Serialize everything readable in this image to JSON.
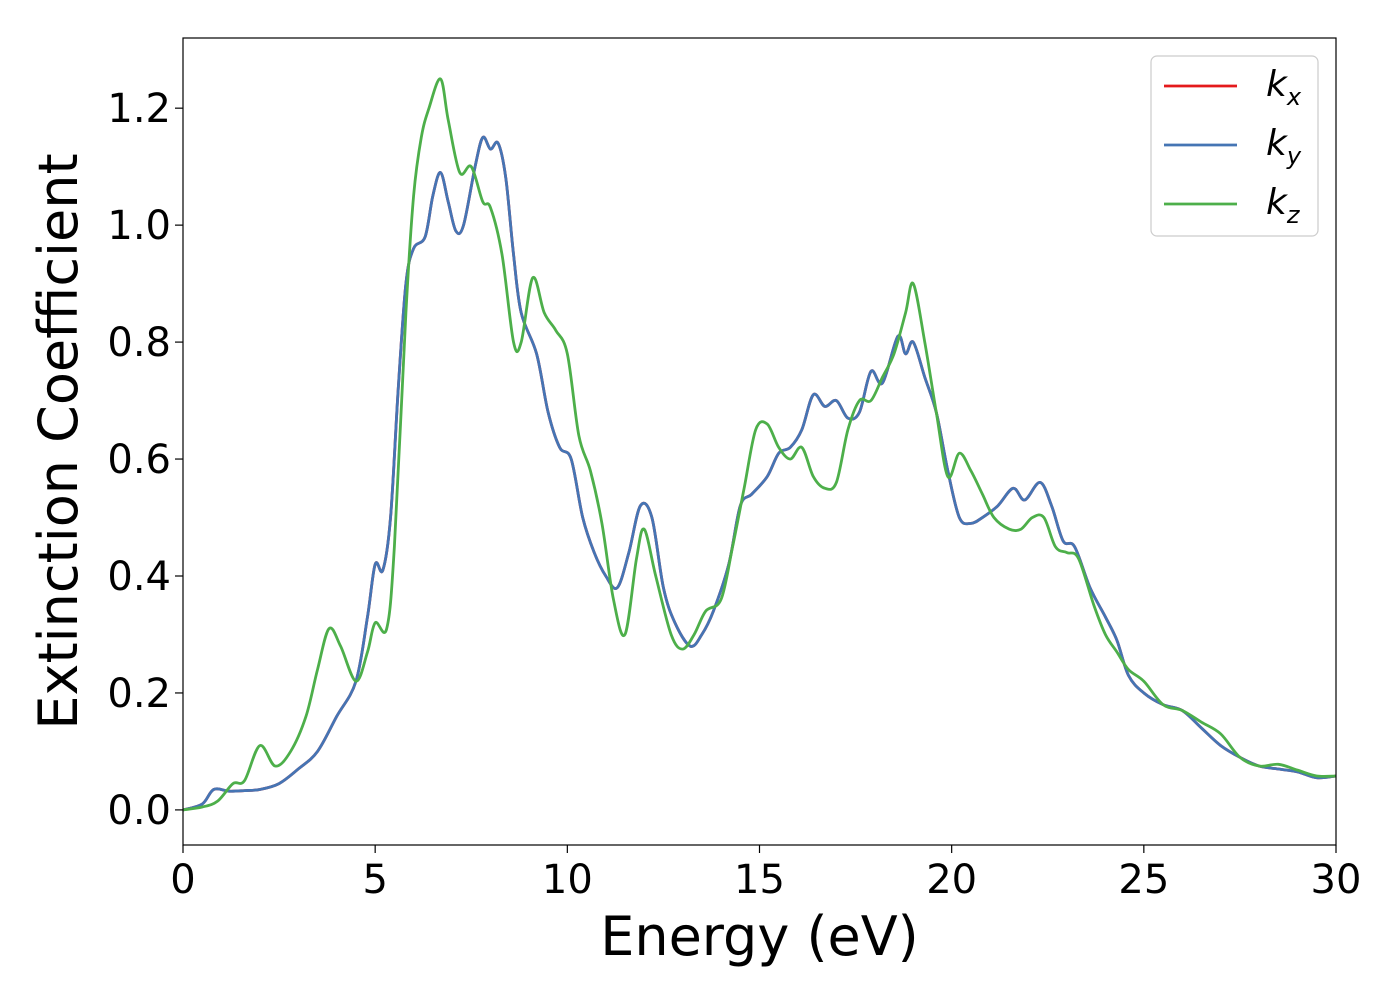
{
  "chart_data": {
    "type": "line",
    "xlabel": "Energy (eV)",
    "ylabel": "Extinction Coefficient",
    "xlim": [
      0,
      30
    ],
    "ylim": [
      -0.06,
      1.32
    ],
    "xticks": [
      0,
      5,
      10,
      15,
      20,
      25,
      30
    ],
    "xtick_labels": [
      "0",
      "5",
      "10",
      "15",
      "20",
      "25",
      "30"
    ],
    "yticks": [
      0.0,
      0.2,
      0.4,
      0.6,
      0.8,
      1.0,
      1.2
    ],
    "ytick_labels": [
      "0.0",
      "0.2",
      "0.4",
      "0.6",
      "0.8",
      "1.0",
      "1.2"
    ],
    "grid": false,
    "legend_position": "top-right",
    "series": [
      {
        "name": "k",
        "subscript": "x",
        "color": "#e41a1c",
        "points": [
          [
            0,
            0.0
          ],
          [
            0.5,
            0.01
          ],
          [
            0.8,
            0.035
          ],
          [
            1.2,
            0.032
          ],
          [
            1.6,
            0.033
          ],
          [
            2.0,
            0.035
          ],
          [
            2.5,
            0.045
          ],
          [
            3.0,
            0.07
          ],
          [
            3.5,
            0.1
          ],
          [
            4.0,
            0.16
          ],
          [
            4.5,
            0.22
          ],
          [
            4.8,
            0.33
          ],
          [
            5.0,
            0.42
          ],
          [
            5.2,
            0.41
          ],
          [
            5.4,
            0.5
          ],
          [
            5.6,
            0.72
          ],
          [
            5.8,
            0.9
          ],
          [
            6.0,
            0.96
          ],
          [
            6.3,
            0.98
          ],
          [
            6.5,
            1.05
          ],
          [
            6.7,
            1.09
          ],
          [
            6.9,
            1.04
          ],
          [
            7.1,
            0.99
          ],
          [
            7.3,
            1.0
          ],
          [
            7.6,
            1.1
          ],
          [
            7.8,
            1.15
          ],
          [
            8.0,
            1.13
          ],
          [
            8.2,
            1.14
          ],
          [
            8.4,
            1.08
          ],
          [
            8.6,
            0.95
          ],
          [
            8.8,
            0.85
          ],
          [
            9.2,
            0.78
          ],
          [
            9.5,
            0.68
          ],
          [
            9.8,
            0.62
          ],
          [
            10.1,
            0.6
          ],
          [
            10.4,
            0.5
          ],
          [
            10.7,
            0.44
          ],
          [
            11.0,
            0.4
          ],
          [
            11.3,
            0.38
          ],
          [
            11.6,
            0.44
          ],
          [
            11.9,
            0.52
          ],
          [
            12.2,
            0.5
          ],
          [
            12.5,
            0.38
          ],
          [
            12.8,
            0.32
          ],
          [
            13.2,
            0.28
          ],
          [
            13.5,
            0.3
          ],
          [
            13.8,
            0.34
          ],
          [
            14.2,
            0.42
          ],
          [
            14.5,
            0.52
          ],
          [
            14.8,
            0.54
          ],
          [
            15.2,
            0.57
          ],
          [
            15.5,
            0.61
          ],
          [
            15.8,
            0.62
          ],
          [
            16.1,
            0.65
          ],
          [
            16.4,
            0.71
          ],
          [
            16.7,
            0.69
          ],
          [
            17.0,
            0.7
          ],
          [
            17.3,
            0.67
          ],
          [
            17.6,
            0.68
          ],
          [
            17.9,
            0.75
          ],
          [
            18.2,
            0.73
          ],
          [
            18.6,
            0.81
          ],
          [
            18.8,
            0.78
          ],
          [
            19.0,
            0.8
          ],
          [
            19.3,
            0.74
          ],
          [
            19.6,
            0.68
          ],
          [
            19.9,
            0.58
          ],
          [
            20.2,
            0.5
          ],
          [
            20.5,
            0.49
          ],
          [
            20.8,
            0.5
          ],
          [
            21.2,
            0.52
          ],
          [
            21.6,
            0.55
          ],
          [
            21.9,
            0.53
          ],
          [
            22.3,
            0.56
          ],
          [
            22.6,
            0.52
          ],
          [
            22.9,
            0.46
          ],
          [
            23.2,
            0.45
          ],
          [
            23.6,
            0.38
          ],
          [
            24.0,
            0.33
          ],
          [
            24.3,
            0.29
          ],
          [
            24.6,
            0.23
          ],
          [
            25.0,
            0.2
          ],
          [
            25.5,
            0.18
          ],
          [
            26.0,
            0.17
          ],
          [
            26.5,
            0.14
          ],
          [
            27.0,
            0.11
          ],
          [
            27.5,
            0.09
          ],
          [
            28.0,
            0.075
          ],
          [
            28.5,
            0.07
          ],
          [
            29.0,
            0.065
          ],
          [
            29.5,
            0.055
          ],
          [
            30.0,
            0.058
          ]
        ]
      },
      {
        "name": "k",
        "subscript": "y",
        "color": "#4575b4",
        "points": [
          [
            0,
            0.0
          ],
          [
            0.5,
            0.01
          ],
          [
            0.8,
            0.035
          ],
          [
            1.2,
            0.032
          ],
          [
            1.6,
            0.033
          ],
          [
            2.0,
            0.035
          ],
          [
            2.5,
            0.045
          ],
          [
            3.0,
            0.07
          ],
          [
            3.5,
            0.1
          ],
          [
            4.0,
            0.16
          ],
          [
            4.5,
            0.22
          ],
          [
            4.8,
            0.33
          ],
          [
            5.0,
            0.42
          ],
          [
            5.2,
            0.41
          ],
          [
            5.4,
            0.5
          ],
          [
            5.6,
            0.72
          ],
          [
            5.8,
            0.9
          ],
          [
            6.0,
            0.96
          ],
          [
            6.3,
            0.98
          ],
          [
            6.5,
            1.05
          ],
          [
            6.7,
            1.09
          ],
          [
            6.9,
            1.04
          ],
          [
            7.1,
            0.99
          ],
          [
            7.3,
            1.0
          ],
          [
            7.6,
            1.1
          ],
          [
            7.8,
            1.15
          ],
          [
            8.0,
            1.13
          ],
          [
            8.2,
            1.14
          ],
          [
            8.4,
            1.08
          ],
          [
            8.6,
            0.95
          ],
          [
            8.8,
            0.85
          ],
          [
            9.2,
            0.78
          ],
          [
            9.5,
            0.68
          ],
          [
            9.8,
            0.62
          ],
          [
            10.1,
            0.6
          ],
          [
            10.4,
            0.5
          ],
          [
            10.7,
            0.44
          ],
          [
            11.0,
            0.4
          ],
          [
            11.3,
            0.38
          ],
          [
            11.6,
            0.44
          ],
          [
            11.9,
            0.52
          ],
          [
            12.2,
            0.5
          ],
          [
            12.5,
            0.38
          ],
          [
            12.8,
            0.32
          ],
          [
            13.2,
            0.28
          ],
          [
            13.5,
            0.3
          ],
          [
            13.8,
            0.34
          ],
          [
            14.2,
            0.42
          ],
          [
            14.5,
            0.52
          ],
          [
            14.8,
            0.54
          ],
          [
            15.2,
            0.57
          ],
          [
            15.5,
            0.61
          ],
          [
            15.8,
            0.62
          ],
          [
            16.1,
            0.65
          ],
          [
            16.4,
            0.71
          ],
          [
            16.7,
            0.69
          ],
          [
            17.0,
            0.7
          ],
          [
            17.3,
            0.67
          ],
          [
            17.6,
            0.68
          ],
          [
            17.9,
            0.75
          ],
          [
            18.2,
            0.73
          ],
          [
            18.6,
            0.81
          ],
          [
            18.8,
            0.78
          ],
          [
            19.0,
            0.8
          ],
          [
            19.3,
            0.74
          ],
          [
            19.6,
            0.68
          ],
          [
            19.9,
            0.58
          ],
          [
            20.2,
            0.5
          ],
          [
            20.5,
            0.49
          ],
          [
            20.8,
            0.5
          ],
          [
            21.2,
            0.52
          ],
          [
            21.6,
            0.55
          ],
          [
            21.9,
            0.53
          ],
          [
            22.3,
            0.56
          ],
          [
            22.6,
            0.52
          ],
          [
            22.9,
            0.46
          ],
          [
            23.2,
            0.45
          ],
          [
            23.6,
            0.38
          ],
          [
            24.0,
            0.33
          ],
          [
            24.3,
            0.29
          ],
          [
            24.6,
            0.23
          ],
          [
            25.0,
            0.2
          ],
          [
            25.5,
            0.18
          ],
          [
            26.0,
            0.17
          ],
          [
            26.5,
            0.14
          ],
          [
            27.0,
            0.11
          ],
          [
            27.5,
            0.09
          ],
          [
            28.0,
            0.075
          ],
          [
            28.5,
            0.07
          ],
          [
            29.0,
            0.065
          ],
          [
            29.5,
            0.055
          ],
          [
            30.0,
            0.058
          ]
        ]
      },
      {
        "name": "k",
        "subscript": "z",
        "color": "#4daf4a",
        "points": [
          [
            0,
            0.0
          ],
          [
            0.5,
            0.005
          ],
          [
            0.9,
            0.015
          ],
          [
            1.3,
            0.045
          ],
          [
            1.6,
            0.05
          ],
          [
            2.0,
            0.11
          ],
          [
            2.4,
            0.075
          ],
          [
            2.8,
            0.1
          ],
          [
            3.2,
            0.16
          ],
          [
            3.5,
            0.24
          ],
          [
            3.8,
            0.31
          ],
          [
            4.1,
            0.28
          ],
          [
            4.5,
            0.22
          ],
          [
            4.8,
            0.27
          ],
          [
            5.0,
            0.32
          ],
          [
            5.3,
            0.31
          ],
          [
            5.5,
            0.45
          ],
          [
            5.8,
            0.85
          ],
          [
            6.0,
            1.05
          ],
          [
            6.2,
            1.15
          ],
          [
            6.4,
            1.2
          ],
          [
            6.7,
            1.25
          ],
          [
            6.9,
            1.18
          ],
          [
            7.2,
            1.09
          ],
          [
            7.5,
            1.1
          ],
          [
            7.8,
            1.04
          ],
          [
            8.0,
            1.03
          ],
          [
            8.3,
            0.95
          ],
          [
            8.6,
            0.8
          ],
          [
            8.8,
            0.8
          ],
          [
            9.1,
            0.91
          ],
          [
            9.4,
            0.85
          ],
          [
            9.7,
            0.82
          ],
          [
            10.0,
            0.78
          ],
          [
            10.3,
            0.64
          ],
          [
            10.6,
            0.58
          ],
          [
            10.9,
            0.49
          ],
          [
            11.2,
            0.36
          ],
          [
            11.5,
            0.3
          ],
          [
            11.8,
            0.43
          ],
          [
            12.0,
            0.48
          ],
          [
            12.3,
            0.4
          ],
          [
            12.7,
            0.3
          ],
          [
            13.0,
            0.275
          ],
          [
            13.3,
            0.3
          ],
          [
            13.6,
            0.34
          ],
          [
            14.0,
            0.36
          ],
          [
            14.3,
            0.45
          ],
          [
            14.6,
            0.55
          ],
          [
            14.9,
            0.65
          ],
          [
            15.2,
            0.66
          ],
          [
            15.5,
            0.62
          ],
          [
            15.8,
            0.6
          ],
          [
            16.1,
            0.62
          ],
          [
            16.4,
            0.57
          ],
          [
            16.7,
            0.55
          ],
          [
            17.0,
            0.56
          ],
          [
            17.3,
            0.65
          ],
          [
            17.6,
            0.7
          ],
          [
            17.9,
            0.7
          ],
          [
            18.2,
            0.74
          ],
          [
            18.5,
            0.78
          ],
          [
            18.8,
            0.85
          ],
          [
            19.0,
            0.9
          ],
          [
            19.3,
            0.8
          ],
          [
            19.6,
            0.68
          ],
          [
            19.9,
            0.57
          ],
          [
            20.2,
            0.61
          ],
          [
            20.5,
            0.58
          ],
          [
            20.8,
            0.54
          ],
          [
            21.1,
            0.5
          ],
          [
            21.5,
            0.48
          ],
          [
            21.8,
            0.48
          ],
          [
            22.1,
            0.5
          ],
          [
            22.4,
            0.5
          ],
          [
            22.7,
            0.45
          ],
          [
            23.0,
            0.44
          ],
          [
            23.3,
            0.43
          ],
          [
            23.7,
            0.35
          ],
          [
            24.0,
            0.3
          ],
          [
            24.3,
            0.27
          ],
          [
            24.6,
            0.24
          ],
          [
            25.0,
            0.22
          ],
          [
            25.5,
            0.18
          ],
          [
            26.0,
            0.17
          ],
          [
            26.5,
            0.15
          ],
          [
            27.0,
            0.13
          ],
          [
            27.5,
            0.09
          ],
          [
            28.0,
            0.075
          ],
          [
            28.5,
            0.078
          ],
          [
            29.0,
            0.068
          ],
          [
            29.5,
            0.058
          ],
          [
            30.0,
            0.058
          ]
        ]
      }
    ]
  }
}
